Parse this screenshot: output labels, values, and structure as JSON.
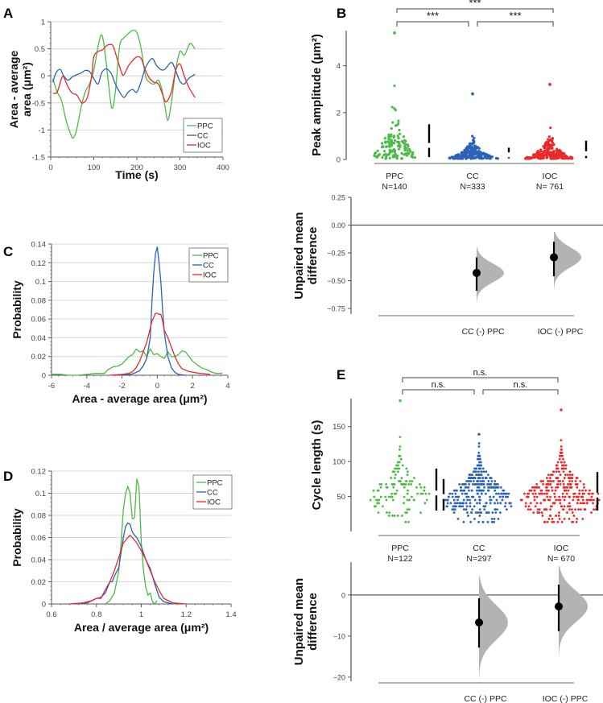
{
  "chart_data": [
    {
      "id": "A",
      "type": "line",
      "panel_label": "A",
      "xlabel": "Time (s)",
      "ylabel": [
        "Area - average",
        "area (μm²)"
      ],
      "xlim": [
        0,
        400
      ],
      "ylim": [
        -1.5,
        1
      ],
      "xticks": [
        "0",
        "100",
        "200",
        "300",
        "400"
      ],
      "yticks": [
        "1",
        "0.5",
        "0",
        "-0.5",
        "-1",
        "-1.5"
      ],
      "grid": true,
      "legend": "bottom-right",
      "series": [
        {
          "name": "PPC",
          "color": "#4cbb47",
          "x": [
            5,
            15,
            25,
            35,
            45,
            52,
            60,
            70,
            80,
            90,
            100,
            110,
            118,
            125,
            135,
            142,
            150,
            160,
            170,
            180,
            190,
            200,
            210,
            220,
            230,
            240,
            250,
            258,
            265,
            272,
            280,
            290,
            300,
            310,
            320,
            325,
            335
          ],
          "y": [
            -0.05,
            -0.3,
            -0.45,
            -0.8,
            -1.05,
            -1.15,
            -1.0,
            -0.6,
            -0.3,
            -0.15,
            0.1,
            0.55,
            0.76,
            0.5,
            -0.2,
            -0.6,
            -0.3,
            0.55,
            0.7,
            0.78,
            0.84,
            0.8,
            0.5,
            0.0,
            -0.12,
            -0.15,
            -0.08,
            -0.25,
            -0.55,
            -0.82,
            -0.5,
            0.1,
            0.45,
            0.38,
            0.55,
            0.6,
            0.5
          ]
        },
        {
          "name": "CC",
          "color": "#2a62b8",
          "x": [
            5,
            12,
            22,
            30,
            40,
            50,
            60,
            70,
            80,
            90,
            100,
            110,
            118,
            128,
            140,
            150,
            160,
            170,
            180,
            190,
            200,
            210,
            220,
            235,
            245,
            255,
            265,
            280,
            290,
            300,
            310,
            320,
            335
          ],
          "y": [
            -0.12,
            0.05,
            0.12,
            0.0,
            -0.08,
            -0.02,
            0.02,
            0.05,
            0.1,
            0.08,
            -0.05,
            -0.15,
            0.05,
            0.13,
            0.05,
            -0.15,
            -0.3,
            -0.4,
            -0.3,
            -0.25,
            -0.3,
            -0.1,
            0.15,
            0.32,
            0.2,
            0.12,
            0.12,
            0.25,
            0.1,
            -0.1,
            -0.15,
            -0.05,
            0.03
          ]
        },
        {
          "name": "IOC",
          "color": "#e82a2a",
          "x": [
            5,
            15,
            25,
            30,
            40,
            50,
            60,
            70,
            75,
            85,
            95,
            100,
            110,
            120,
            130,
            138,
            145,
            155,
            165,
            170,
            180,
            190,
            200,
            210,
            220,
            230,
            240,
            250,
            260,
            268,
            280,
            290,
            300,
            310,
            320,
            335
          ],
          "y": [
            -0.32,
            -0.3,
            -0.05,
            -0.02,
            -0.2,
            -0.32,
            -0.35,
            -0.48,
            -0.5,
            -0.4,
            0.0,
            0.35,
            0.45,
            0.48,
            0.56,
            0.58,
            0.55,
            0.3,
            0.05,
            0.02,
            0.18,
            0.28,
            0.35,
            0.32,
            0.1,
            -0.05,
            -0.12,
            -0.15,
            -0.35,
            -0.48,
            -0.3,
            0.1,
            0.22,
            0.0,
            -0.2,
            -0.4
          ]
        }
      ]
    },
    {
      "id": "C",
      "type": "line",
      "panel_label": "C",
      "xlabel": "Area - average area (μm²)",
      "ylabel": "Probability",
      "xlim": [
        -6,
        4
      ],
      "ylim": [
        0,
        0.14
      ],
      "xticks": [
        "-6",
        "-4",
        "-2",
        "0",
        "2",
        "4"
      ],
      "yticks": [
        "0.14",
        "0.12",
        "0.1",
        "0.08",
        "0.06",
        "0.04",
        "0.02",
        "0"
      ],
      "grid": true,
      "legend": "top-right",
      "series": [
        {
          "name": "PPC",
          "color": "#4cbb47",
          "x": [
            -6,
            -5.5,
            -5,
            -4.5,
            -4,
            -3.5,
            -3,
            -2.8,
            -2.5,
            -2.2,
            -2,
            -1.8,
            -1.6,
            -1.4,
            -1.2,
            -1.0,
            -0.8,
            -0.6,
            -0.4,
            -0.2,
            0,
            0.2,
            0.4,
            0.6,
            0.8,
            1.0,
            1.2,
            1.4,
            1.6,
            1.8,
            2.0,
            2.2,
            2.5,
            2.8,
            3.0,
            3.3,
            3.7
          ],
          "y": [
            0.001,
            0.001,
            0,
            0,
            0.001,
            0.002,
            0.002,
            0.006,
            0.009,
            0.01,
            0.012,
            0.016,
            0.02,
            0.022,
            0.028,
            0.025,
            0.026,
            0.02,
            0.028,
            0.022,
            0.023,
            0.02,
            0.018,
            0.025,
            0.02,
            0.02,
            0.022,
            0.026,
            0.025,
            0.02,
            0.015,
            0.012,
            0.008,
            0.006,
            0.004,
            0.002,
            0.002
          ]
        },
        {
          "name": "CC",
          "color": "#2a62b8",
          "x": [
            -2.5,
            -1.5,
            -1.2,
            -1.0,
            -0.8,
            -0.6,
            -0.4,
            -0.3,
            -0.2,
            -0.1,
            0,
            0.1,
            0.2,
            0.3,
            0.4,
            0.6,
            0.8,
            1.0,
            1.2,
            1.6
          ],
          "y": [
            0,
            0.001,
            0.003,
            0.005,
            0.01,
            0.018,
            0.04,
            0.08,
            0.11,
            0.13,
            0.137,
            0.12,
            0.1,
            0.07,
            0.045,
            0.02,
            0.008,
            0.003,
            0.001,
            0
          ]
        },
        {
          "name": "IOC",
          "color": "#e82a2a",
          "x": [
            -2.7,
            -2,
            -1.6,
            -1.4,
            -1.2,
            -1.0,
            -0.8,
            -0.6,
            -0.4,
            -0.3,
            -0.2,
            -0.1,
            0,
            0.1,
            0.2,
            0.3,
            0.4,
            0.6,
            0.8,
            1.0,
            1.2,
            1.4,
            1.8,
            2.4,
            3.0
          ],
          "y": [
            0,
            0.001,
            0.002,
            0.004,
            0.008,
            0.015,
            0.025,
            0.035,
            0.05,
            0.058,
            0.062,
            0.066,
            0.066,
            0.065,
            0.065,
            0.058,
            0.048,
            0.04,
            0.03,
            0.02,
            0.012,
            0.007,
            0.004,
            0.002,
            0.001
          ]
        }
      ]
    },
    {
      "id": "D",
      "type": "line",
      "panel_label": "D",
      "xlabel": "Area / average area (μm²)",
      "ylabel": "Probability",
      "xlim": [
        0.6,
        1.4
      ],
      "ylim": [
        0,
        0.12
      ],
      "xticks": [
        "0.6",
        "0.8",
        "1",
        "1.2",
        "1.4"
      ],
      "yticks": [
        "0.12",
        "0.1",
        "0.08",
        "0.06",
        "0.04",
        "0.02",
        "0"
      ],
      "grid": true,
      "legend": "top-right",
      "series": [
        {
          "name": "PPC",
          "color": "#4cbb47",
          "x": [
            0.84,
            0.86,
            0.88,
            0.9,
            0.91,
            0.92,
            0.93,
            0.94,
            0.95,
            0.96,
            0.965,
            0.97,
            0.98,
            0.99,
            1.0,
            1.01,
            1.02,
            1.03,
            1.04,
            1.05,
            1.06,
            1.07
          ],
          "y": [
            0,
            0.003,
            0.01,
            0.03,
            0.055,
            0.085,
            0.1,
            0.106,
            0.1,
            0.077,
            0.077,
            0.078,
            0.113,
            0.105,
            0.055,
            0.03,
            0.015,
            0.008,
            0.01,
            0.002,
            0,
            0.003
          ]
        },
        {
          "name": "CC",
          "color": "#2a62b8",
          "x": [
            0.7,
            0.76,
            0.8,
            0.82,
            0.84,
            0.86,
            0.87,
            0.88,
            0.9,
            0.92,
            0.93,
            0.94,
            0.95,
            0.96,
            0.97,
            0.98,
            1.0,
            1.02,
            1.04,
            1.06,
            1.08,
            1.1,
            1.14
          ],
          "y": [
            0,
            0.001,
            0.005,
            0.006,
            0.01,
            0.02,
            0.02,
            0.025,
            0.033,
            0.06,
            0.07,
            0.073,
            0.072,
            0.065,
            0.062,
            0.06,
            0.052,
            0.04,
            0.032,
            0.018,
            0.006,
            0.002,
            0
          ]
        },
        {
          "name": "IOC",
          "color": "#e82a2a",
          "x": [
            0.68,
            0.74,
            0.78,
            0.8,
            0.82,
            0.84,
            0.86,
            0.88,
            0.9,
            0.92,
            0.94,
            0.95,
            0.96,
            0.98,
            1.0,
            1.02,
            1.04,
            1.06,
            1.08,
            1.1,
            1.14,
            1.2
          ],
          "y": [
            0,
            0.001,
            0.003,
            0.005,
            0.005,
            0.013,
            0.02,
            0.03,
            0.042,
            0.055,
            0.06,
            0.062,
            0.06,
            0.055,
            0.048,
            0.04,
            0.03,
            0.02,
            0.012,
            0.005,
            0.001,
            0
          ]
        }
      ]
    },
    {
      "id": "B-top",
      "type": "scatter",
      "panel_label": "B",
      "ylabel": "Peak amplitude  (μm²)",
      "ylim": [
        0,
        5.5
      ],
      "yticks": [
        "0",
        "2",
        "4"
      ],
      "categories": [
        "PPC",
        "CC",
        "IOC"
      ],
      "n_labels": [
        "N=140",
        "N=333",
        "N= 761"
      ],
      "n": [
        140,
        333,
        761
      ],
      "max_values": [
        5.4,
        2.8,
        3.2
      ],
      "median": [
        0.6,
        0.2,
        0.25
      ],
      "quartiles": [
        [
          0.1,
          1.5
        ],
        [
          0.05,
          0.5
        ],
        [
          0.05,
          0.8
        ]
      ],
      "colors": [
        "#4cbb47",
        "#2a62b8",
        "#e82a2a"
      ],
      "significance": [
        {
          "from": "PPC",
          "to": "IOC",
          "label": "***"
        },
        {
          "from": "PPC",
          "to": "CC",
          "label": "***"
        },
        {
          "from": "CC",
          "to": "IOC",
          "label": "***"
        }
      ]
    },
    {
      "id": "B-bottom",
      "type": "scatter",
      "ylabel": [
        "Unpaired mean",
        "difference"
      ],
      "ylim": [
        -0.8,
        0.25
      ],
      "yticks": [
        "0.25",
        "0.00",
        "−0.25",
        "−0.50",
        "−0.75"
      ],
      "categories": [
        "CC (-) PPC",
        "IOC (-) PPC"
      ],
      "mean_diff": [
        -0.43,
        -0.29
      ],
      "ci": [
        [
          -0.59,
          -0.29
        ],
        [
          -0.46,
          -0.15
        ]
      ],
      "dist_range": [
        [
          -0.7,
          -0.2
        ],
        [
          -0.6,
          -0.06
        ]
      ]
    },
    {
      "id": "E-top",
      "type": "scatter",
      "panel_label": "E",
      "ylabel": "Cycle length (s)",
      "ylim": [
        0,
        190
      ],
      "yticks": [
        "50",
        "100",
        "150"
      ],
      "categories": [
        "PPC",
        "CC",
        "IOC"
      ],
      "n_labels": [
        "N=122",
        "N=297",
        "N= 670"
      ],
      "n": [
        122,
        297,
        670
      ],
      "max_values": [
        187,
        139,
        174
      ],
      "median": [
        55,
        50,
        52
      ],
      "quartiles": [
        [
          30,
          90
        ],
        [
          30,
          75
        ],
        [
          30,
          85
        ]
      ],
      "colors": [
        "#4cbb47",
        "#2a62b8",
        "#e82a2a"
      ],
      "significance": [
        {
          "from": "PPC",
          "to": "IOC",
          "label": "n.s."
        },
        {
          "from": "PPC",
          "to": "CC",
          "label": "n.s."
        },
        {
          "from": "CC",
          "to": "IOC",
          "label": "n.s."
        }
      ]
    },
    {
      "id": "E-bottom",
      "type": "scatter",
      "ylabel": [
        "Unpaired mean",
        "difference"
      ],
      "ylim": [
        -21,
        8
      ],
      "yticks": [
        "0",
        "−10",
        "−20"
      ],
      "categories": [
        "CC (-) PPC",
        "IOC (-) PPC"
      ],
      "mean_diff": [
        -6.7,
        -2.8
      ],
      "ci": [
        [
          -12.8,
          -0.8
        ],
        [
          -8.8,
          2.5
        ]
      ],
      "dist_range": [
        [
          -20.5,
          4.5
        ],
        [
          -15.5,
          7
        ]
      ]
    }
  ]
}
